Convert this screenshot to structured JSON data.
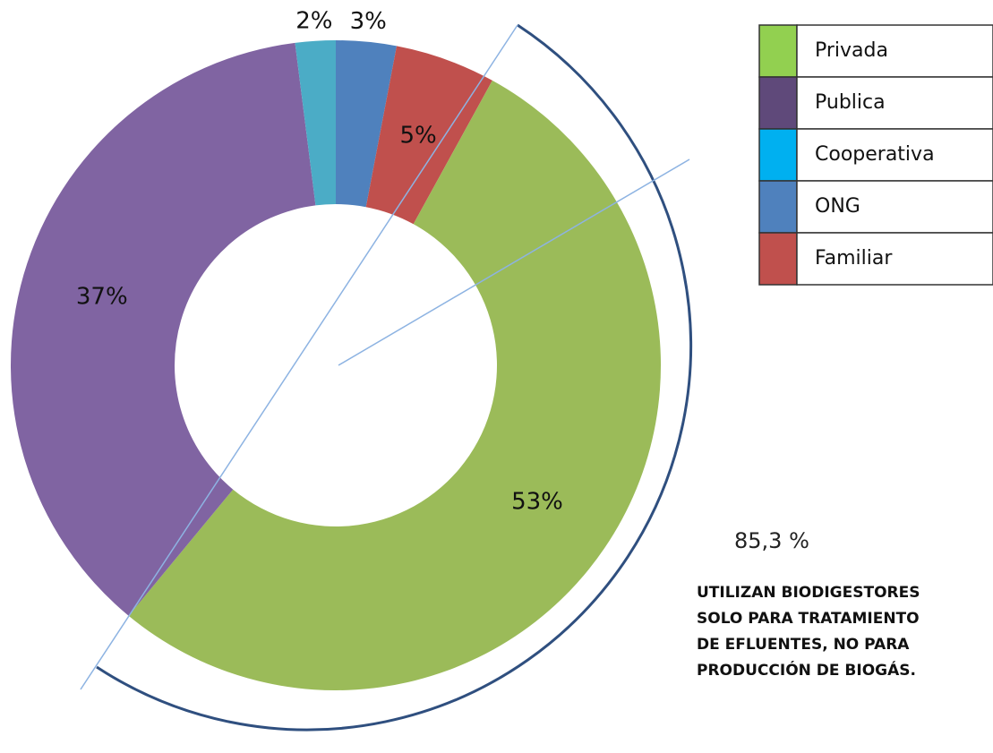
{
  "chart_data": {
    "type": "donut",
    "categories": [
      "ONG",
      "Familiar",
      "Privada",
      "Publica",
      "Cooperativa"
    ],
    "values": [
      3,
      5,
      53,
      37,
      2
    ],
    "value_labels": [
      "3%",
      "5%",
      "53%",
      "37%",
      "2%"
    ],
    "colors": [
      "#4f81bd",
      "#c0504d",
      "#9bbb59",
      "#8064a2",
      "#4bacc6"
    ],
    "legend": {
      "position": "upper right",
      "entries": [
        "Privada",
        "Publica",
        "Cooperativa",
        "ONG",
        "Familiar"
      ],
      "colors": [
        "#92d050",
        "#5f497a",
        "#00b0f0",
        "#4f81bd",
        "#c0504d"
      ]
    },
    "annotation": {
      "value": "85,3 %",
      "text": [
        "UTILIZAN BIODIGESTORES",
        "SOLO PARA TRATAMIENTO",
        "DE EFLUENTES, NO PARA",
        "PRODUCCIÓN DE BIOGÁS."
      ]
    }
  }
}
